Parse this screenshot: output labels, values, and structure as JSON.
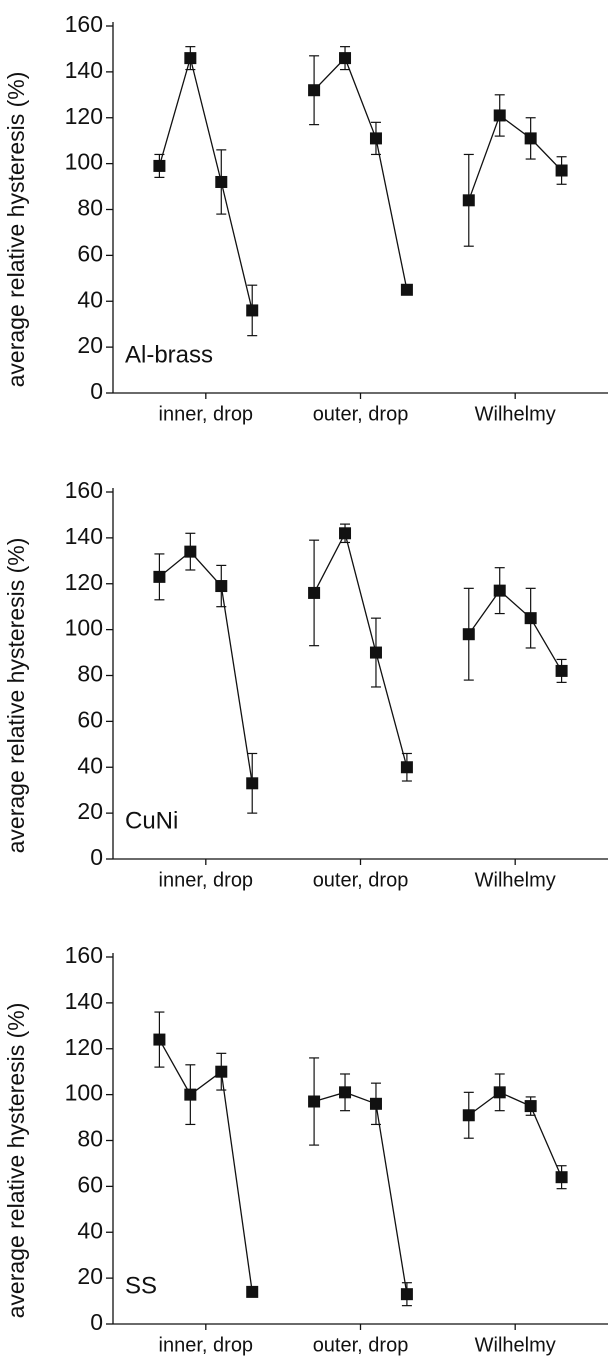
{
  "chart_data": [
    {
      "type": "line",
      "title": "Al-brass",
      "y_label": "average relative hysteresis (%)",
      "color": "#111111",
      "x": [
        1,
        2,
        3,
        4,
        5,
        6,
        7,
        8,
        9,
        10,
        11,
        12,
        13,
        14
      ],
      "values": [
        99,
        146,
        92,
        36,
        null,
        132,
        146,
        111,
        45,
        null,
        84,
        121,
        111,
        97
      ],
      "errors": [
        5,
        5,
        14,
        11,
        null,
        15,
        5,
        7,
        1,
        null,
        20,
        9,
        9,
        6
      ],
      "xlim": [
        -0.5,
        15.5
      ],
      "xticks": [
        {
          "value": 2.5,
          "label": "inner, drop"
        },
        {
          "value": 7.5,
          "label": "outer, drop"
        },
        {
          "value": 12.5,
          "label": "Wilhelmy"
        }
      ],
      "ylim": [
        0,
        160
      ],
      "yticks": [
        0,
        20,
        40,
        60,
        80,
        100,
        120,
        140,
        160
      ]
    },
    {
      "type": "line",
      "title": "CuNi",
      "y_label": "average relative hysteresis (%)",
      "color": "#111111",
      "x": [
        1,
        2,
        3,
        4,
        5,
        6,
        7,
        8,
        9,
        10,
        11,
        12,
        13,
        14
      ],
      "values": [
        123,
        134,
        119,
        33,
        null,
        116,
        142,
        90,
        40,
        null,
        98,
        117,
        105,
        82
      ],
      "errors": [
        10,
        8,
        9,
        13,
        null,
        23,
        4,
        15,
        6,
        null,
        20,
        10,
        13,
        5
      ],
      "xlim": [
        -0.5,
        15.5
      ],
      "xticks": [
        {
          "value": 2.5,
          "label": "inner, drop"
        },
        {
          "value": 7.5,
          "label": "outer, drop"
        },
        {
          "value": 12.5,
          "label": "Wilhelmy"
        }
      ],
      "ylim": [
        0,
        160
      ],
      "yticks": [
        0,
        20,
        40,
        60,
        80,
        100,
        120,
        140,
        160
      ]
    },
    {
      "type": "line",
      "title": "SS",
      "y_label": "average relative hysteresis (%)",
      "color": "#111111",
      "x": [
        1,
        2,
        3,
        4,
        5,
        6,
        7,
        8,
        9,
        10,
        11,
        12,
        13,
        14
      ],
      "values": [
        124,
        100,
        110,
        14,
        null,
        97,
        101,
        96,
        13,
        null,
        91,
        101,
        95,
        64
      ],
      "errors": [
        12,
        13,
        8,
        2,
        null,
        19,
        8,
        9,
        5,
        null,
        10,
        8,
        4,
        5
      ],
      "xlim": [
        -0.5,
        15.5
      ],
      "xticks": [
        {
          "value": 2.5,
          "label": "inner, drop"
        },
        {
          "value": 7.5,
          "label": "outer, drop"
        },
        {
          "value": 12.5,
          "label": "Wilhelmy"
        }
      ],
      "ylim": [
        0,
        160
      ],
      "yticks": [
        0,
        20,
        40,
        60,
        80,
        100,
        120,
        140,
        160
      ]
    }
  ]
}
